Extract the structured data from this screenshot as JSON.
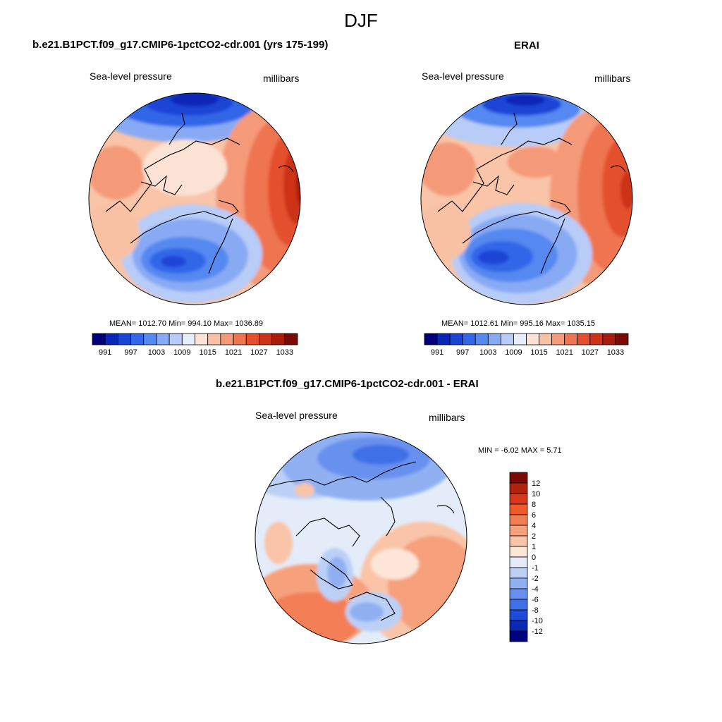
{
  "main_title": "DJF",
  "panels": [
    {
      "title": "b.e21.B1PCT.f09_g17.CMIP6-1pctCO2-cdr.001 (yrs 175-199)",
      "left_label": "Sea-level pressure",
      "right_label": "millibars",
      "stats": "MEAN= 1012.70  Min= 994.10  Max= 1036.89",
      "mean": 1012.7,
      "min": 994.1,
      "max": 1036.89
    },
    {
      "title": "ERAI",
      "left_label": "Sea-level pressure",
      "right_label": "millibars",
      "stats": "MEAN= 1012.61  Min= 995.16  Max= 1035.15",
      "mean": 1012.61,
      "min": 995.16,
      "max": 1035.15
    },
    {
      "title": "b.e21.B1PCT.f09_g17.CMIP6-1pctCO2-cdr.001 - ERAI",
      "left_label": "Sea-level pressure",
      "right_label": "millibars",
      "stats": "MIN =  -6.02 MAX =   5.71",
      "min": -6.02,
      "max": 5.71
    }
  ],
  "abs_colorbar": {
    "colors": [
      "#00007a",
      "#0a26b8",
      "#1a44d6",
      "#3366e8",
      "#5588f0",
      "#88aaf4",
      "#b8ccf8",
      "#e6eefb",
      "#fbe2d4",
      "#f8c1a4",
      "#f49a78",
      "#ee7550",
      "#e4502d",
      "#cc3318",
      "#a81c0c",
      "#7a0a03"
    ],
    "labels": [
      "991",
      "997",
      "1003",
      "1009",
      "1015",
      "1021",
      "1027",
      "1033"
    ]
  },
  "diff_colorbar": {
    "colors": [
      "#7a0a03",
      "#b0230d",
      "#d7381a",
      "#f05a2c",
      "#f47e54",
      "#f6a07c",
      "#f9c4a8",
      "#fde6d8",
      "#e4ecfa",
      "#bcd0f6",
      "#90b0f2",
      "#6890ee",
      "#4070e6",
      "#1e4ad8",
      "#0a28b4",
      "#000080"
    ],
    "labels": [
      "12",
      "10",
      "8",
      "6",
      "4",
      "2",
      "1",
      "0",
      "-1",
      "-2",
      "-4",
      "-6",
      "-8",
      "-10",
      "-12"
    ]
  }
}
